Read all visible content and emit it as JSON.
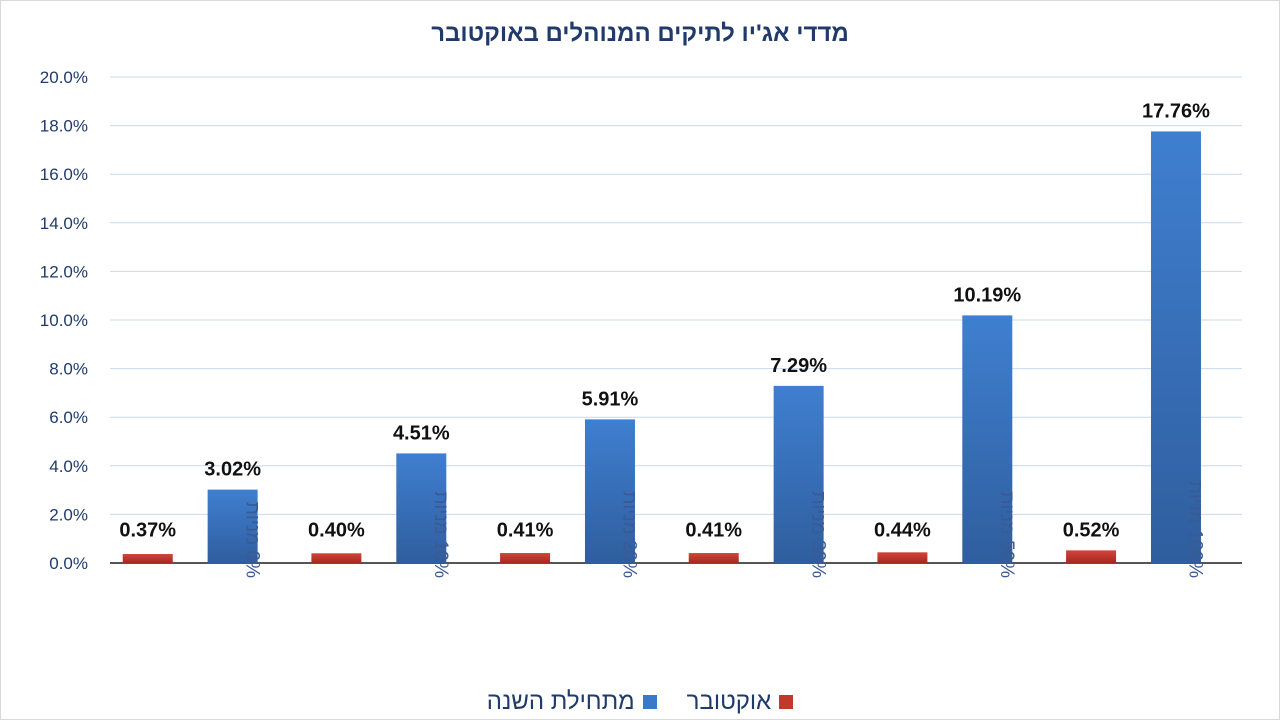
{
  "chart_data": {
    "type": "bar",
    "title": "מדדי אג'יו לתיקים המנוהלים  באוקטובר",
    "categories": [
      "0% מניות",
      "10% מניות",
      "20% מניות",
      "30% מניות",
      "50% מניות",
      "100% מניות"
    ],
    "series": [
      {
        "name": "אוקטובר",
        "color": "#c0392b",
        "values": [
          0.37,
          0.4,
          0.41,
          0.41,
          0.44,
          0.52
        ],
        "labels": [
          "0.37%",
          "0.40%",
          "0.41%",
          "0.41%",
          "0.44%",
          "0.52%"
        ]
      },
      {
        "name": "מתחילת השנה",
        "color": "#3a78c9",
        "values": [
          3.02,
          4.51,
          5.91,
          7.29,
          10.19,
          17.76
        ],
        "labels": [
          "3.02%",
          "4.51%",
          "5.91%",
          "7.29%",
          "10.19%",
          "17.76%"
        ]
      }
    ],
    "ylim": [
      0,
      20
    ],
    "yticks": [
      "0.0%",
      "2.0%",
      "4.0%",
      "6.0%",
      "8.0%",
      "10.0%",
      "12.0%",
      "14.0%",
      "16.0%",
      "18.0%",
      "20.0%"
    ],
    "grid": true,
    "legend_position": "bottom",
    "xlabel": "",
    "ylabel": ""
  }
}
